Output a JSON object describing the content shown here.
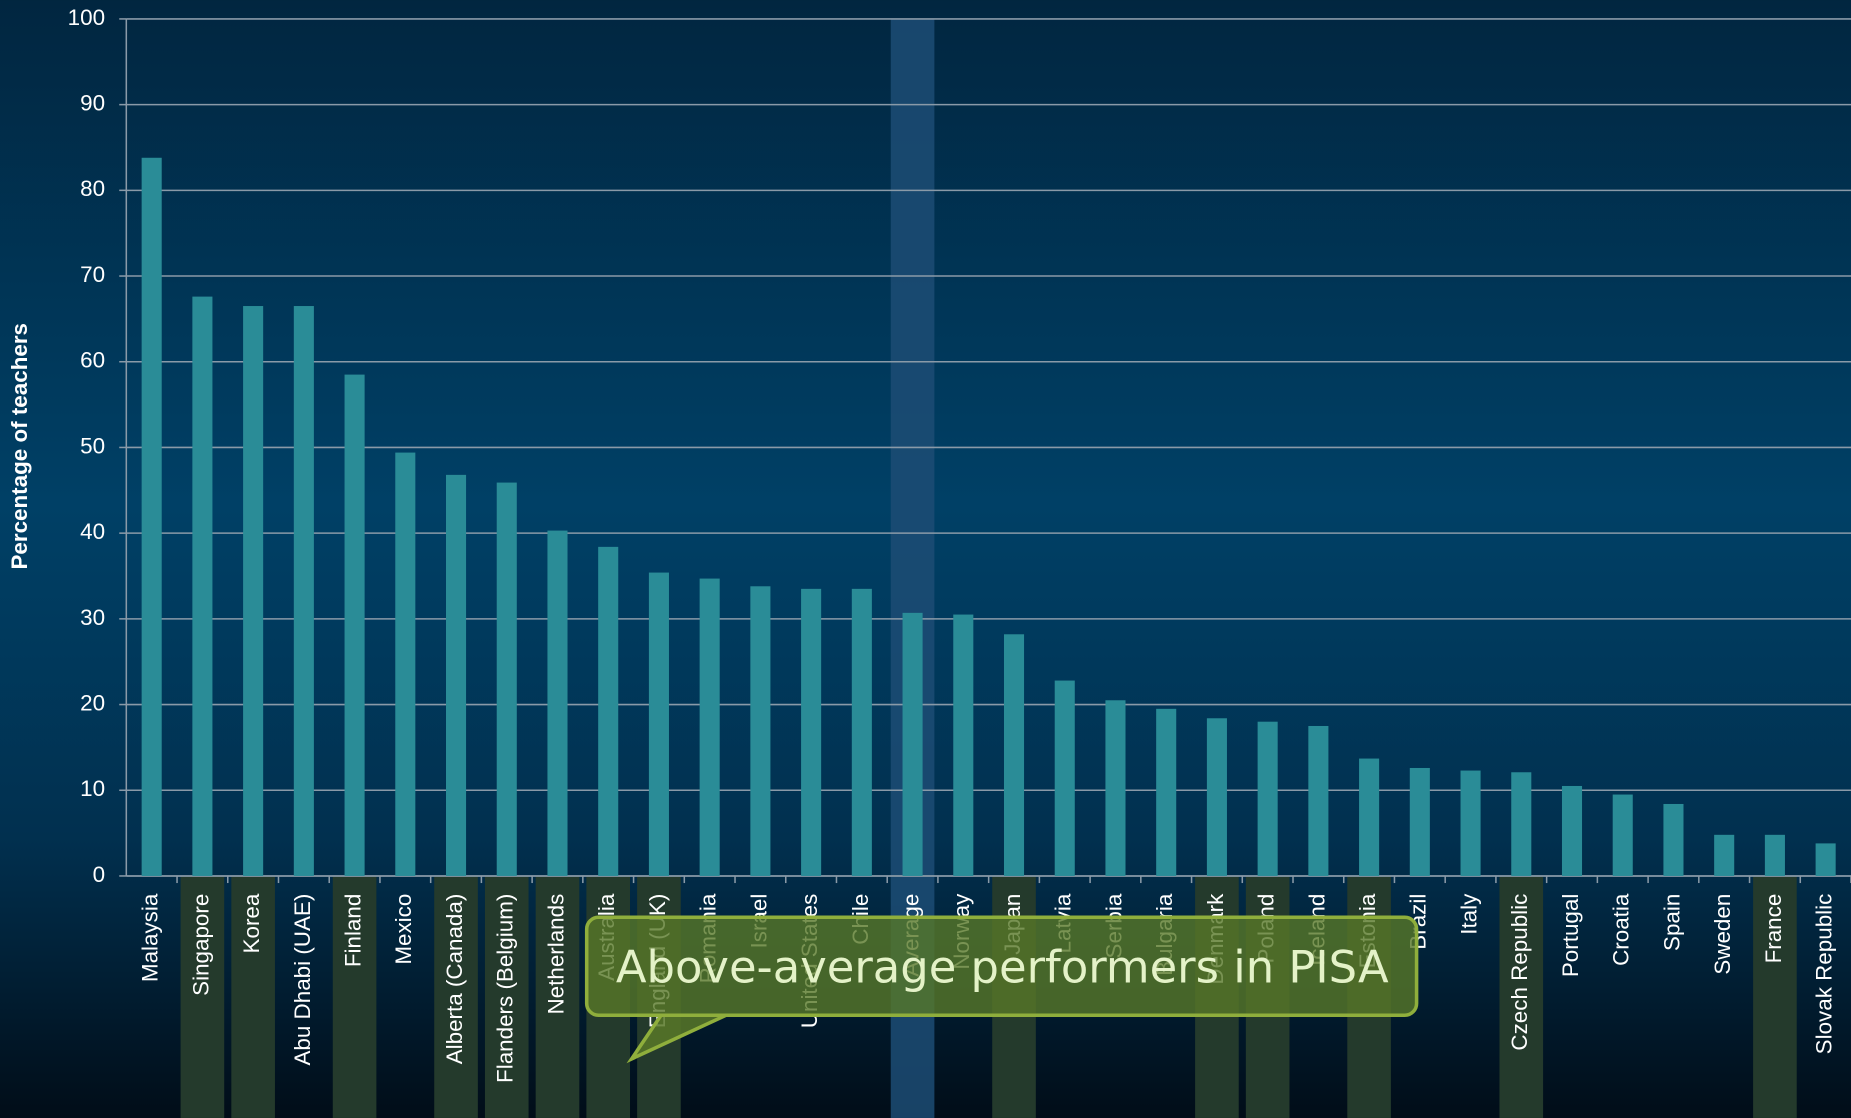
{
  "chart_data": {
    "type": "bar",
    "y_label": "Percentage of teachers",
    "annotation": "Above-average performers in PISA",
    "categories": [
      "Malaysia",
      "Singapore",
      "Korea",
      "Abu Dhabi (UAE)",
      "Finland",
      "Mexico",
      "Alberta (Canada)",
      "Flanders (Belgium)",
      "Netherlands",
      "Australia",
      "England (UK)",
      "Romania",
      "Israel",
      "United States",
      "Chile",
      "Average",
      "Norway",
      "Japan",
      "Latvia",
      "Serbia",
      "Bulgaria",
      "Denmark",
      "Poland",
      "Iceland",
      "Estonia",
      "Brazil",
      "Italy",
      "Czech Republic",
      "Portugal",
      "Croatia",
      "Spain",
      "Sweden",
      "France",
      "Slovak Republic"
    ],
    "values": [
      83.8,
      67.6,
      66.5,
      66.5,
      58.5,
      49.4,
      46.8,
      45.9,
      40.3,
      38.4,
      35.4,
      34.7,
      33.8,
      33.5,
      33.5,
      30.7,
      30.5,
      28.2,
      22.8,
      20.5,
      19.5,
      18.4,
      18.0,
      17.5,
      13.7,
      12.6,
      12.3,
      12.1,
      10.5,
      9.5,
      8.4,
      4.8,
      4.8,
      3.8
    ],
    "color": "#2a8c97",
    "band_colors": [
      null,
      "#243a2c",
      "#243a2c",
      null,
      "#243a2c",
      null,
      "#243a2c",
      "#243a2c",
      "#243a2c",
      "#243a2c",
      "#243a2c",
      null,
      null,
      null,
      null,
      "#1c4c74",
      null,
      "#243a2c",
      null,
      null,
      null,
      "#243a2c",
      "#243a2c",
      null,
      "#243a2c",
      null,
      null,
      "#243a2c",
      null,
      null,
      null,
      null,
      "#243a2c",
      null
    ],
    "ylim": [
      0,
      100
    ],
    "yticks": [
      0,
      10,
      20,
      30,
      40,
      50,
      60,
      70,
      80,
      90,
      100
    ],
    "grid": true
  }
}
